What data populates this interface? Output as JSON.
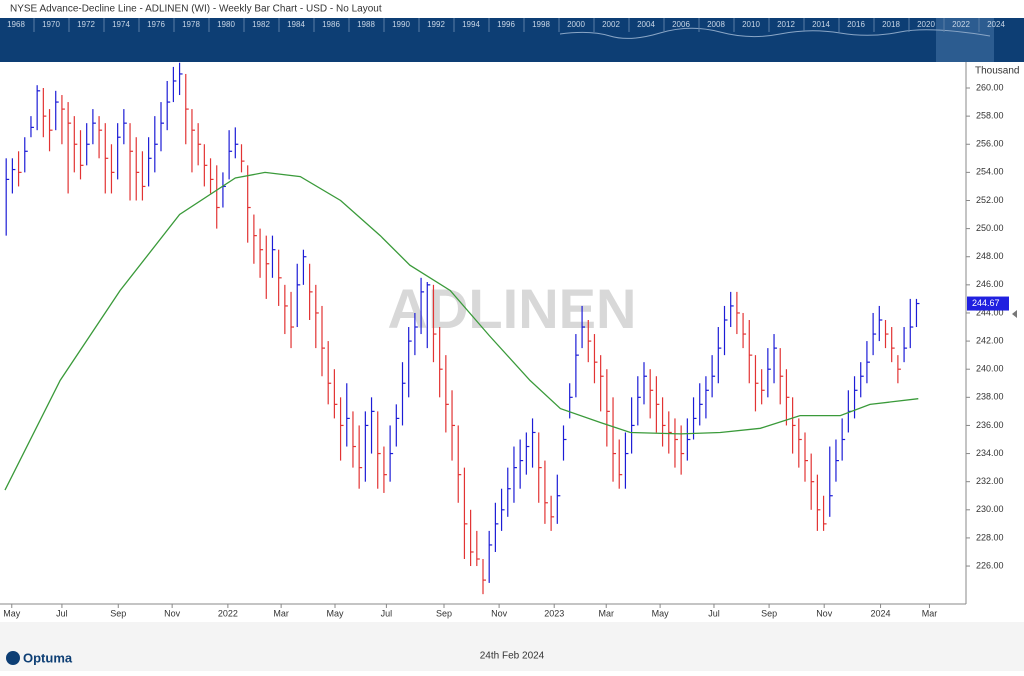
{
  "chart_data": {
    "type": "ohlc",
    "title": "NYSE  Advance-Decline Line - ADLINEN (WI) - Weekly Bar Chart - USD - No Layout",
    "watermark": "ADLINEN",
    "y_unit": "Thousand",
    "overview_years": [
      "1968",
      "1970",
      "1972",
      "1974",
      "1976",
      "1978",
      "1980",
      "1982",
      "1984",
      "1986",
      "1988",
      "1990",
      "1992",
      "1994",
      "1996",
      "1998",
      "2000",
      "2002",
      "2004",
      "2006",
      "2008",
      "2010",
      "2012",
      "2014",
      "2016",
      "2018",
      "2020",
      "2022",
      "2024"
    ],
    "brand": "Optuma",
    "date": "24th Feb 2024",
    "up_color": "#1c1cd6",
    "down_color": "#e23333",
    "xlim": [
      -1,
      155
    ],
    "xticks": [
      {
        "value": 0.9,
        "label": "May"
      },
      {
        "value": 9.0,
        "label": "Jul"
      },
      {
        "value": 18.1,
        "label": "Sep"
      },
      {
        "value": 26.8,
        "label": "Nov"
      },
      {
        "value": 35.8,
        "label": "2022"
      },
      {
        "value": 44.4,
        "label": "Mar"
      },
      {
        "value": 53.1,
        "label": "May"
      },
      {
        "value": 61.4,
        "label": "Jul"
      },
      {
        "value": 70.7,
        "label": "Sep"
      },
      {
        "value": 79.6,
        "label": "Nov"
      },
      {
        "value": 88.5,
        "label": "2023"
      },
      {
        "value": 96.9,
        "label": "Mar"
      },
      {
        "value": 105.6,
        "label": "May"
      },
      {
        "value": 114.3,
        "label": "Jul"
      },
      {
        "value": 123.2,
        "label": "Sep"
      },
      {
        "value": 132.1,
        "label": "Nov"
      },
      {
        "value": 141.2,
        "label": "2024"
      },
      {
        "value": 149.1,
        "label": "Mar"
      }
    ],
    "ylim": [
      223.3,
      261.85
    ],
    "yticks": [
      {
        "value": 226,
        "label": "226.00"
      },
      {
        "value": 228,
        "label": "228.00"
      },
      {
        "value": 230,
        "label": "230.00"
      },
      {
        "value": 232,
        "label": "232.00"
      },
      {
        "value": 234,
        "label": "234.00"
      },
      {
        "value": 236,
        "label": "236.00"
      },
      {
        "value": 238,
        "label": "238.00"
      },
      {
        "value": 240,
        "label": "240.00"
      },
      {
        "value": 242,
        "label": "242.00"
      },
      {
        "value": 244,
        "label": "244.00"
      },
      {
        "value": 246,
        "label": "246.00"
      },
      {
        "value": 248,
        "label": "248.00"
      },
      {
        "value": 250,
        "label": "250.00"
      },
      {
        "value": 252,
        "label": "252.00"
      },
      {
        "value": 254,
        "label": "254.00"
      },
      {
        "value": 256,
        "label": "256.00"
      },
      {
        "value": 258,
        "label": "258.00"
      },
      {
        "value": 260,
        "label": "260.00"
      }
    ],
    "x": [
      0,
      1,
      2,
      3,
      4,
      5,
      6,
      7,
      8,
      9,
      10,
      11,
      12,
      13,
      14,
      15,
      16,
      17,
      18,
      19,
      20,
      21,
      22,
      23,
      24,
      25,
      26,
      27,
      28,
      29,
      30,
      31,
      32,
      33,
      34,
      35,
      36,
      37,
      38,
      39,
      40,
      41,
      42,
      43,
      44,
      45,
      46,
      47,
      48,
      49,
      50,
      51,
      52,
      53,
      54,
      55,
      56,
      57,
      58,
      59,
      60,
      61,
      62,
      63,
      64,
      65,
      66,
      67,
      68,
      69,
      70,
      71,
      72,
      73,
      74,
      75,
      76,
      77,
      78,
      79,
      80,
      81,
      82,
      83,
      84,
      85,
      86,
      87,
      88,
      89,
      90,
      91,
      92,
      93,
      94,
      95,
      96,
      97,
      98,
      99,
      100,
      101,
      102,
      103,
      104,
      105,
      106,
      107,
      108,
      109,
      110,
      111,
      112,
      113,
      114,
      115,
      116,
      117,
      118,
      119,
      120,
      121,
      122,
      123,
      124,
      125,
      126,
      127,
      128,
      129,
      130,
      131,
      132,
      133,
      134,
      135,
      136,
      137,
      138,
      139,
      140,
      141,
      142,
      143,
      144,
      145,
      146,
      147
    ],
    "high": [
      255,
      255,
      255.5,
      256.5,
      258,
      260.2,
      260,
      258.5,
      259.8,
      259.5,
      259,
      258,
      257,
      257.5,
      258.5,
      258,
      257.5,
      256,
      257.5,
      258.5,
      257.5,
      256.5,
      255.5,
      256.5,
      258,
      259,
      260.5,
      261.5,
      261.8,
      261,
      258.5,
      257.5,
      256,
      255,
      254.5,
      254,
      257,
      257.2,
      256,
      254.5,
      251,
      250,
      249.5,
      249.5,
      248.5,
      246,
      245.5,
      247.5,
      248.5,
      247.5,
      246,
      244.5,
      242,
      240,
      238,
      239,
      237,
      236,
      237,
      238,
      237,
      234.5,
      236,
      237.5,
      240.5,
      243,
      244,
      246.5,
      246.2,
      246,
      243,
      241,
      238.5,
      236,
      233,
      230,
      228.5,
      226.5,
      228.5,
      230.5,
      231.5,
      233,
      234.5,
      235,
      235.5,
      236.5,
      235.5,
      233.5,
      231,
      232.5,
      236,
      239,
      242.5,
      244.5,
      243.5,
      242.5,
      241,
      240,
      238,
      235,
      235.5,
      238,
      239.5,
      240.5,
      240,
      239.5,
      238,
      237,
      236.5,
      236,
      236.5,
      238,
      239,
      239.5,
      241,
      243,
      244.5,
      245.5,
      245.5,
      244,
      243.5,
      241,
      240,
      241.5,
      242.5,
      241.5,
      240,
      238,
      236.5,
      235.5,
      234,
      232.5,
      231,
      234.5,
      235,
      236.5,
      238.5,
      239.5,
      240.5,
      242,
      244,
      244.5,
      243.5,
      243,
      241,
      243,
      245,
      245
    ],
    "low": [
      249.5,
      252.5,
      253,
      254,
      256.5,
      257,
      256.5,
      255.5,
      257,
      256,
      252.5,
      254,
      253.5,
      254.5,
      256,
      255,
      252.5,
      252.5,
      253.5,
      256,
      252,
      252,
      252,
      253,
      254,
      255.5,
      257,
      259,
      259.5,
      256,
      254,
      254.5,
      253,
      252.5,
      250,
      251.5,
      253.5,
      255,
      254,
      249,
      247.5,
      246.5,
      245,
      246.5,
      244.5,
      242.5,
      241.5,
      243,
      246,
      243.5,
      241.5,
      239.5,
      237.5,
      236.5,
      233.5,
      234.5,
      233,
      231.5,
      232,
      234,
      231.5,
      231.2,
      232,
      234.5,
      236,
      238,
      241,
      242.5,
      241.5,
      240.5,
      238,
      235.5,
      233.5,
      230.5,
      226.5,
      226,
      226,
      224,
      224.8,
      227,
      228.5,
      229.5,
      230.5,
      231.5,
      232.5,
      233,
      230.5,
      229,
      228.5,
      229,
      233.5,
      236.5,
      238,
      241.5,
      240.5,
      239,
      237,
      234.5,
      232,
      231.5,
      231.5,
      234,
      236,
      237.5,
      236.5,
      235.5,
      234.5,
      234,
      233,
      232.5,
      233.5,
      235,
      236,
      236.5,
      238,
      239,
      241,
      243,
      242.5,
      241.5,
      239,
      237,
      237.5,
      238,
      239,
      237.5,
      236,
      234,
      233,
      232,
      230,
      228.5,
      228.5,
      229.5,
      232,
      233.5,
      235.5,
      236.5,
      238,
      239,
      241,
      242,
      241.5,
      240.5,
      239,
      240.5,
      241.5,
      243
    ],
    "close": [
      253.5,
      254.2,
      254,
      255.5,
      257.2,
      259.8,
      258,
      257,
      259,
      258.5,
      257.5,
      256,
      254.5,
      256,
      257.5,
      257,
      255,
      254,
      256.5,
      257.5,
      255.5,
      254,
      253,
      255,
      256,
      257.5,
      259,
      260.5,
      261,
      258.5,
      257,
      256,
      254.5,
      253.5,
      251.5,
      253,
      255.5,
      256,
      254.8,
      251.5,
      249.5,
      248.5,
      247.5,
      248.5,
      246.5,
      244.5,
      243,
      246,
      248,
      245.5,
      244,
      241.5,
      239,
      237.5,
      236,
      236.5,
      234.5,
      233,
      236,
      237,
      234,
      232.5,
      234,
      236.5,
      239,
      242,
      243,
      245.5,
      246,
      242.5,
      240,
      237.5,
      236,
      232.5,
      229,
      227,
      226.5,
      225,
      227.5,
      229,
      230,
      231.5,
      233,
      233.5,
      234.5,
      235.5,
      233,
      230.5,
      229.5,
      231,
      235,
      238,
      241,
      243,
      242,
      240.5,
      239.5,
      237,
      234,
      232.5,
      234,
      236,
      238,
      239.5,
      238.5,
      237.5,
      236,
      235.5,
      235,
      234,
      235,
      236.5,
      237.5,
      238.5,
      239.5,
      241.5,
      243.5,
      244.5,
      244,
      242.5,
      241,
      239,
      238.5,
      240,
      241.5,
      239.5,
      238,
      236,
      235,
      233.5,
      232,
      230,
      229,
      231,
      233.5,
      235,
      237,
      238.5,
      239.5,
      240.5,
      242.5,
      243.5,
      242.5,
      241.5,
      240,
      241.5,
      243,
      244.67
    ],
    "moving_average": {
      "color": "#3a9a3a",
      "x": [
        -0.2,
        8.7,
        18.4,
        28,
        37,
        41.8,
        47.5,
        54,
        60.4,
        65.2,
        71.7,
        78,
        84.6,
        89.5,
        96,
        100.8,
        108.9,
        115.3,
        121.8,
        128.2,
        134.7,
        139.5,
        147.3
      ],
      "values": [
        231.4,
        239.2,
        245.6,
        251,
        253.6,
        254,
        253.7,
        252,
        249.5,
        247.4,
        245.6,
        242.4,
        239.2,
        237.2,
        236.2,
        235.5,
        235.4,
        235.5,
        235.8,
        236.7,
        236.7,
        237.5,
        237.9
      ]
    }
  }
}
